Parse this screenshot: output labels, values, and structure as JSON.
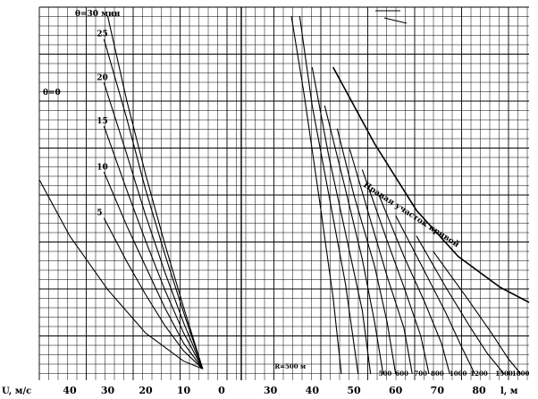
{
  "chart_data": {
    "type": "line",
    "left_panel": {
      "axis_label": "U, м/с",
      "ticks": [
        40,
        30,
        20,
        10,
        0
      ],
      "xlim": [
        48,
        0
      ],
      "family_label": "θ=30 мин",
      "curves": [
        {
          "label": "θ=0",
          "points": [
            [
              48,
              76
            ],
            [
              40,
              54
            ],
            [
              30,
              33
            ],
            [
              20,
              16
            ],
            [
              10,
              5
            ],
            [
              5,
              2
            ]
          ]
        },
        {
          "label": "5",
          "points": [
            [
              31,
              61
            ],
            [
              25,
              44
            ],
            [
              20,
              31
            ],
            [
              15,
              19
            ],
            [
              10,
              9
            ],
            [
              5,
              2
            ]
          ]
        },
        {
          "label": "10",
          "points": [
            [
              31,
              79
            ],
            [
              25,
              58
            ],
            [
              20,
              42
            ],
            [
              15,
              26
            ],
            [
              10,
              12
            ],
            [
              5,
              2
            ]
          ]
        },
        {
          "label": "15",
          "points": [
            [
              31,
              97
            ],
            [
              25,
              72
            ],
            [
              20,
              52
            ],
            [
              15,
              33
            ],
            [
              10,
              16
            ],
            [
              5,
              2
            ]
          ]
        },
        {
          "label": "20",
          "points": [
            [
              31,
              114
            ],
            [
              25,
              86
            ],
            [
              20,
              62
            ],
            [
              15,
              40
            ],
            [
              10,
              20
            ],
            [
              5,
              2
            ]
          ]
        },
        {
          "label": "25",
          "points": [
            [
              31,
              131
            ],
            [
              25,
              100
            ],
            [
              20,
              72
            ],
            [
              15,
              47
            ],
            [
              10,
              24
            ],
            [
              5,
              2
            ]
          ]
        },
        {
          "label": "",
          "points": [
            [
              30,
              140
            ],
            [
              25,
              107
            ],
            [
              20,
              78
            ],
            [
              15,
              51
            ],
            [
              10,
              26
            ],
            [
              5,
              2
            ]
          ]
        }
      ]
    },
    "right_panel": {
      "axis_label": "l, м",
      "ticks": [
        30,
        40,
        50,
        60,
        70,
        80
      ],
      "xlim": [
        23,
        92
      ],
      "boundary_label": "Правая участок кривой",
      "curves": [
        {
          "label": "R=500 м",
          "points": [
            [
              35,
              140
            ],
            [
              38,
              110
            ],
            [
              42,
              65
            ],
            [
              45,
              30
            ],
            [
              47,
              0
            ]
          ]
        },
        {
          "label": "",
          "points": [
            [
              37,
              140
            ],
            [
              40,
              105
            ],
            [
              44,
              70
            ],
            [
              48,
              35
            ],
            [
              51,
              0
            ]
          ]
        },
        {
          "label": "",
          "points": [
            [
              40,
              120
            ],
            [
              44,
              85
            ],
            [
              48,
              55
            ],
            [
              52,
              25
            ],
            [
              54,
              0
            ]
          ]
        },
        {
          "label": "500",
          "points": [
            [
              43,
              105
            ],
            [
              48,
              72
            ],
            [
              52,
              45
            ],
            [
              55,
              20
            ],
            [
              57,
              0
            ]
          ]
        },
        {
          "label": "600",
          "points": [
            [
              46,
              96
            ],
            [
              50,
              70
            ],
            [
              55,
              42
            ],
            [
              58,
              20
            ],
            [
              60,
              0
            ]
          ]
        },
        {
          "label": "700",
          "points": [
            [
              49,
              88
            ],
            [
              54,
              60
            ],
            [
              58,
              38
            ],
            [
              62,
              18
            ],
            [
              64,
              0
            ]
          ]
        },
        {
          "label": "800",
          "points": [
            [
              52,
              80
            ],
            [
              58,
              52
            ],
            [
              62,
              34
            ],
            [
              66,
              15
            ],
            [
              68,
              0
            ]
          ]
        },
        {
          "label": "1000",
          "points": [
            [
              56,
              70
            ],
            [
              62,
              46
            ],
            [
              67,
              28
            ],
            [
              71,
              12
            ],
            [
              73,
              0
            ]
          ]
        },
        {
          "label": "1200",
          "points": [
            [
              60,
              62
            ],
            [
              67,
              40
            ],
            [
              72,
              24
            ],
            [
              76,
              10
            ],
            [
              79,
              0
            ]
          ]
        },
        {
          "label": "1500",
          "points": [
            [
              65,
              54
            ],
            [
              72,
              34
            ],
            [
              78,
              18
            ],
            [
              82,
              8
            ],
            [
              86,
              0
            ]
          ]
        },
        {
          "label": "1800",
          "points": [
            [
              69,
              48
            ],
            [
              77,
              30
            ],
            [
              83,
              16
            ],
            [
              87,
              6
            ],
            [
              90,
              0
            ]
          ]
        }
      ],
      "boundary": [
        [
          45,
          120
        ],
        [
          55,
          90
        ],
        [
          65,
          64
        ],
        [
          75,
          46
        ],
        [
          85,
          34
        ],
        [
          92,
          28
        ]
      ]
    },
    "bottom_labels": [
      "500",
      "600",
      "700",
      "800",
      "1000",
      "1200",
      "1500",
      "1800"
    ]
  }
}
